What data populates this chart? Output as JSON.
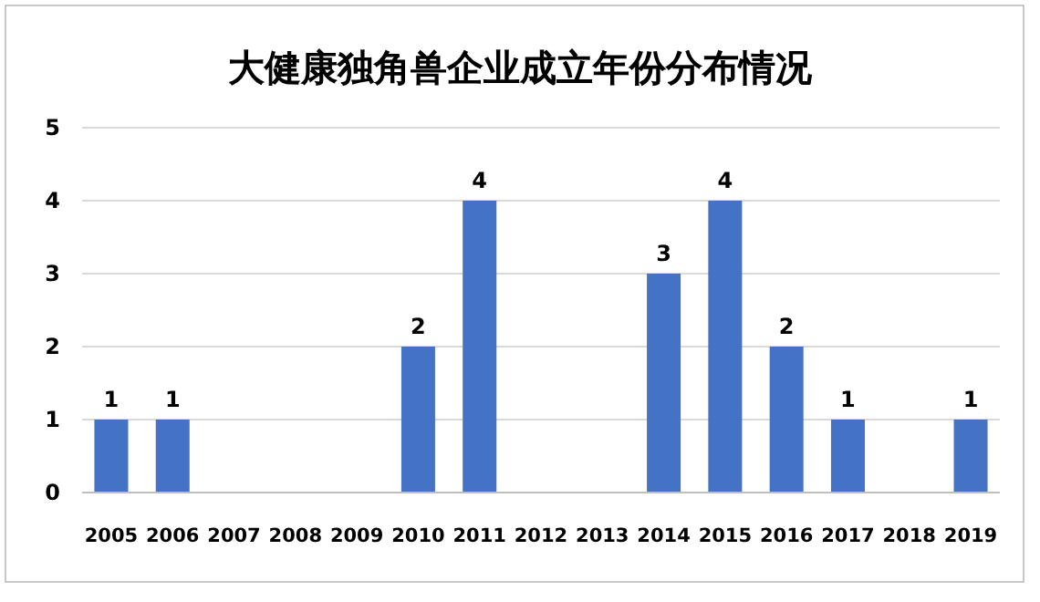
{
  "chart_data": {
    "type": "bar",
    "title": "大健康独角兽企业成立年份分布情况",
    "categories": [
      "2005",
      "2006",
      "2007",
      "2008",
      "2009",
      "2010",
      "2011",
      "2012",
      "2013",
      "2014",
      "2015",
      "2016",
      "2017",
      "2018",
      "2019"
    ],
    "values": [
      1,
      1,
      0,
      0,
      0,
      2,
      4,
      0,
      0,
      3,
      4,
      2,
      1,
      0,
      1
    ],
    "value_labels": [
      "1",
      "1",
      null,
      null,
      null,
      "2",
      "4",
      null,
      null,
      "3",
      "4",
      "2",
      "1",
      null,
      "1"
    ],
    "color": "#4472c4",
    "ylim": [
      0,
      5
    ],
    "yticks": [
      0,
      1,
      2,
      3,
      4,
      5
    ],
    "grid": "y"
  }
}
